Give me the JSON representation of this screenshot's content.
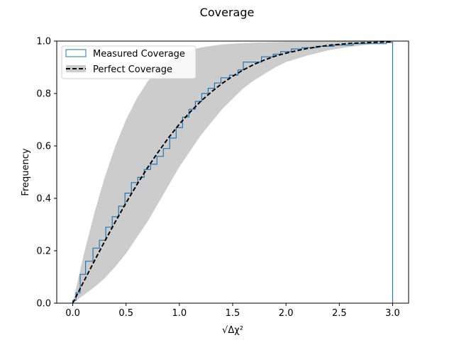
{
  "chart_data": {
    "type": "line",
    "title": "Coverage",
    "xlabel": "√Δχ²",
    "ylabel": "Frequency",
    "xlim": [
      -0.15,
      3.15
    ],
    "ylim": [
      0.0,
      1.0
    ],
    "xticks": [
      "0.0",
      "0.5",
      "1.0",
      "1.5",
      "2.0",
      "2.5",
      "3.0"
    ],
    "yticks": [
      "0.0",
      "0.2",
      "0.4",
      "0.6",
      "0.8",
      "1.0"
    ],
    "grid": false,
    "legend_position": "top-left",
    "series": [
      {
        "name": "Measured Coverage",
        "style": "step",
        "color": "#1f77b4",
        "x": [
          0.0,
          0.03,
          0.07,
          0.12,
          0.19,
          0.25,
          0.31,
          0.37,
          0.43,
          0.49,
          0.55,
          0.61,
          0.67,
          0.73,
          0.79,
          0.85,
          0.91,
          0.97,
          1.03,
          1.09,
          1.15,
          1.21,
          1.27,
          1.33,
          1.39,
          1.47,
          1.55,
          1.6,
          1.77,
          1.88,
          1.95,
          2.05,
          2.15,
          2.28,
          2.45,
          2.63,
          2.94,
          3.0
        ],
        "y": [
          0.01,
          0.04,
          0.11,
          0.16,
          0.21,
          0.24,
          0.29,
          0.33,
          0.37,
          0.42,
          0.46,
          0.48,
          0.51,
          0.53,
          0.56,
          0.59,
          0.63,
          0.67,
          0.71,
          0.74,
          0.77,
          0.8,
          0.82,
          0.84,
          0.86,
          0.87,
          0.89,
          0.92,
          0.94,
          0.95,
          0.96,
          0.97,
          0.975,
          0.98,
          0.985,
          0.99,
          0.995,
          0.0
        ]
      },
      {
        "name": "Perfect Coverage",
        "style": "dashed",
        "color": "#000000",
        "x": [
          0.0,
          0.1,
          0.2,
          0.3,
          0.4,
          0.5,
          0.6,
          0.7,
          0.8,
          0.9,
          1.0,
          1.1,
          1.2,
          1.3,
          1.4,
          1.5,
          1.6,
          1.7,
          1.8,
          1.9,
          2.0,
          2.2,
          2.4,
          2.6,
          2.8,
          3.0
        ],
        "y": [
          0.0,
          0.08,
          0.159,
          0.236,
          0.311,
          0.383,
          0.451,
          0.516,
          0.576,
          0.632,
          0.683,
          0.729,
          0.77,
          0.806,
          0.838,
          0.866,
          0.89,
          0.911,
          0.928,
          0.943,
          0.954,
          0.972,
          0.984,
          0.991,
          0.995,
          0.997
        ]
      }
    ],
    "band": {
      "color": "#cccccc",
      "x": [
        0.0,
        0.1,
        0.2,
        0.3,
        0.4,
        0.5,
        0.6,
        0.7,
        0.8,
        0.9,
        1.0,
        1.1,
        1.2,
        1.3,
        1.4,
        1.5,
        1.6,
        1.7,
        1.8,
        1.9,
        2.0,
        2.2,
        2.4,
        2.6,
        2.8,
        3.0
      ],
      "upper": [
        0.0,
        0.18,
        0.34,
        0.48,
        0.6,
        0.7,
        0.78,
        0.845,
        0.89,
        0.925,
        0.95,
        0.965,
        0.975,
        0.982,
        0.987,
        0.99,
        0.992,
        0.994,
        0.995,
        0.996,
        0.997,
        0.998,
        0.998,
        0.999,
        0.999,
        1.0
      ],
      "lower": [
        0.0,
        0.03,
        0.06,
        0.095,
        0.14,
        0.19,
        0.25,
        0.31,
        0.38,
        0.45,
        0.52,
        0.58,
        0.64,
        0.69,
        0.74,
        0.78,
        0.82,
        0.85,
        0.875,
        0.9,
        0.92,
        0.945,
        0.965,
        0.978,
        0.988,
        0.997
      ]
    }
  }
}
